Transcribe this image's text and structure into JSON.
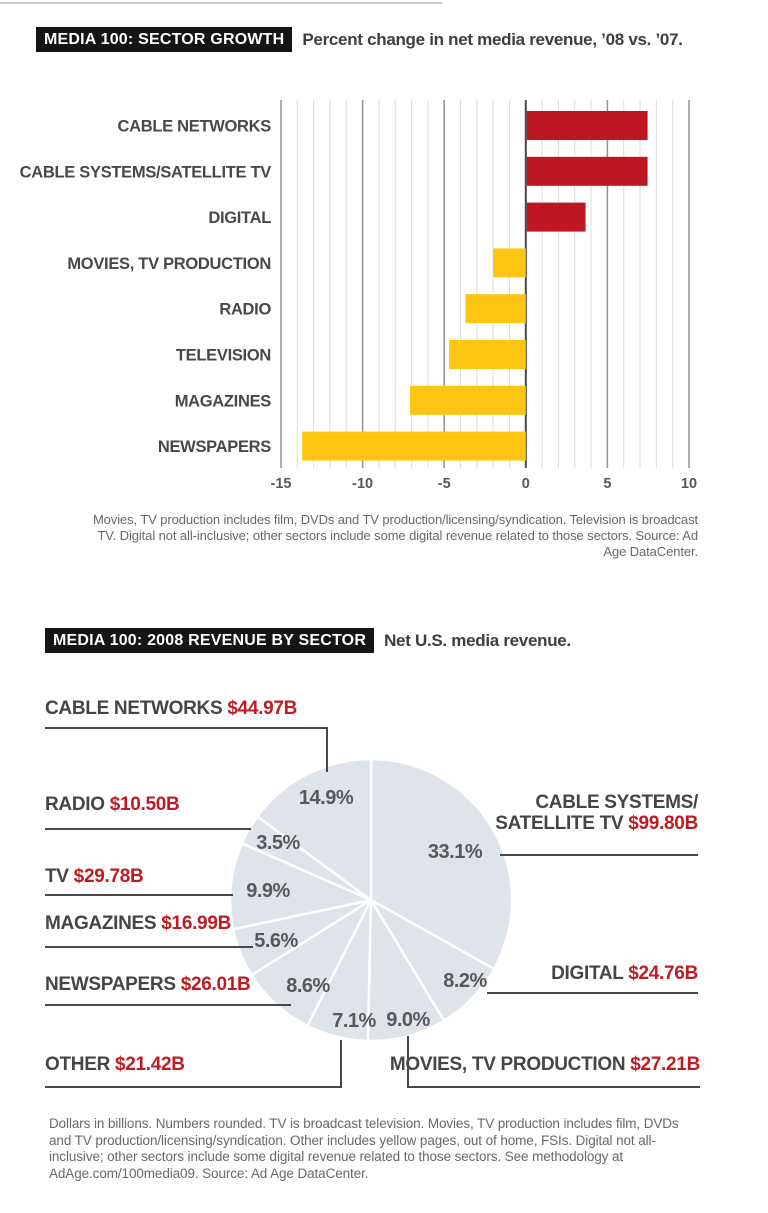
{
  "growth_chart": {
    "title": "MEDIA 100: SECTOR GROWTH",
    "subtitle": "Percent change in net media revenue, ’08 vs. ’07.",
    "footnote": "Movies, TV production includes film, DVDs and TV production/licensing/syndication. Television is broadcast TV. Digital not all-inclusive; other sectors include some digital revenue related to those sectors. Source: Ad Age DataCenter."
  },
  "revenue_chart": {
    "title": "MEDIA 100: 2008 REVENUE BY SECTOR",
    "subtitle": "Net U.S. media revenue.",
    "footnote": "Dollars in billions. Numbers rounded. TV is broadcast television. Movies, TV production includes film, DVDs and TV production/licensing/syndication. Other includes yellow pages, out of home, FSIs. Digital not all-inclusive; other sectors include some digital revenue related to those sectors. See methodology at AdAge.com/100media09. Source: Ad Age DataCenter."
  },
  "callouts": {
    "cable_networks": {
      "name": "CABLE NETWORKS ",
      "value": "$44.97B"
    },
    "radio": {
      "name": "RADIO ",
      "value": "$10.50B"
    },
    "tv": {
      "name": "TV ",
      "value": "$29.78B"
    },
    "magazines": {
      "name": "MAGAZINES ",
      "value": "$16.99B"
    },
    "newspapers": {
      "name": "NEWSPAPERS ",
      "value": "$26.01B"
    },
    "other": {
      "name": "OTHER ",
      "value": "$21.42B"
    },
    "cable_systems": {
      "name_line1": "CABLE SYSTEMS/",
      "name_line2": "SATELLITE TV ",
      "value": "$99.80B"
    },
    "digital": {
      "name": "DIGITAL ",
      "value": "$24.76B"
    },
    "movies": {
      "name": "MOVIES, TV PRODUCTION ",
      "value": "$27.21B"
    }
  },
  "chart_data": [
    {
      "type": "bar",
      "orientation": "horizontal",
      "title": "MEDIA 100: SECTOR GROWTH",
      "subtitle": "Percent change in net media revenue, ’08 vs. ’07.",
      "categories": [
        "CABLE NETWORKS",
        "CABLE SYSTEMS/SATELLITE TV",
        "DIGITAL",
        "MOVIES, TV PRODUCTION",
        "RADIO",
        "TELEVISION",
        "MAGAZINES",
        "NEWSPAPERS"
      ],
      "values": [
        7.4,
        7.4,
        3.6,
        -2.0,
        -3.7,
        -4.7,
        -7.1,
        -13.7
      ],
      "unit": "percent",
      "xlim": [
        -15,
        10
      ],
      "xticks": [
        -15,
        -10,
        -5,
        0,
        5,
        10
      ],
      "grid": true,
      "positive_color": "#be1722",
      "negative_color": "#fdc512"
    },
    {
      "type": "pie",
      "title": "MEDIA 100: 2008 REVENUE BY SECTOR",
      "subtitle": "Net U.S. media revenue.",
      "start_angle_deg": 0,
      "direction": "clockwise",
      "fill": "#dfe4ea",
      "separator_color": "#ffffff",
      "slices": [
        {
          "label": "CABLE SYSTEMS/SATELLITE TV",
          "value_billions": 99.8,
          "pct": 33.1
        },
        {
          "label": "DIGITAL",
          "value_billions": 24.76,
          "pct": 8.2
        },
        {
          "label": "MOVIES, TV PRODUCTION",
          "value_billions": 27.21,
          "pct": 9.0
        },
        {
          "label": "OTHER",
          "value_billions": 21.42,
          "pct": 7.1
        },
        {
          "label": "NEWSPAPERS",
          "value_billions": 26.01,
          "pct": 8.6
        },
        {
          "label": "MAGAZINES",
          "value_billions": 16.99,
          "pct": 5.6
        },
        {
          "label": "TV",
          "value_billions": 29.78,
          "pct": 9.9
        },
        {
          "label": "RADIO",
          "value_billions": 10.5,
          "pct": 3.5
        },
        {
          "label": "CABLE NETWORKS",
          "value_billions": 44.97,
          "pct": 14.9
        }
      ]
    }
  ]
}
